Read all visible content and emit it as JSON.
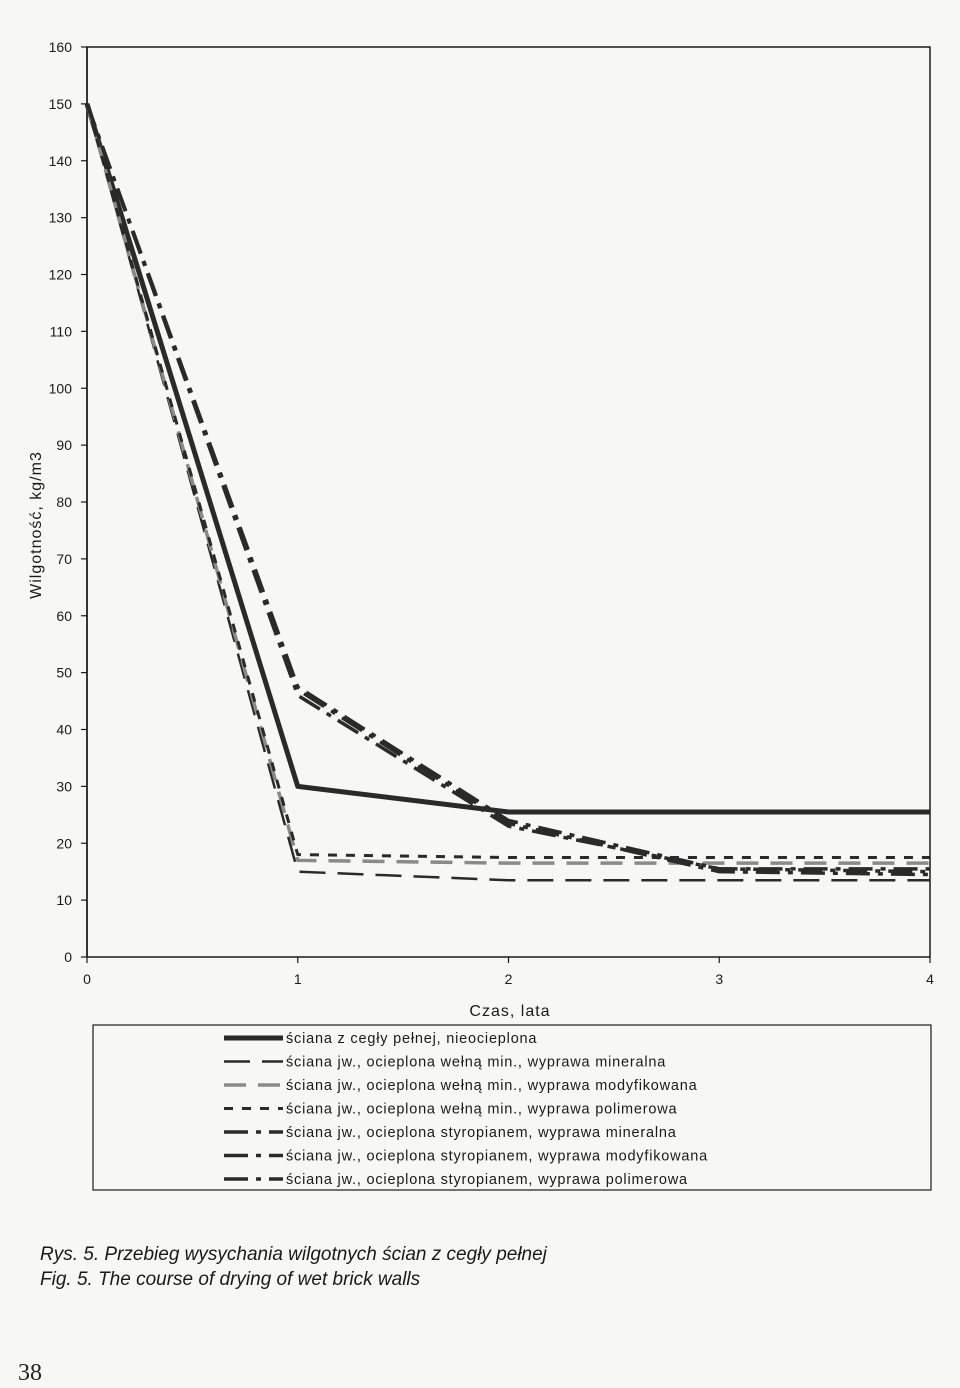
{
  "chart_data": {
    "type": "line",
    "title": "",
    "xlabel": "Czas, lata",
    "ylabel": "Wilgotność, kg/m3",
    "xlim": [
      0,
      4
    ],
    "ylim": [
      0,
      160
    ],
    "x_ticks": [
      0,
      1,
      2,
      3,
      4
    ],
    "y_ticks": [
      0,
      10,
      20,
      30,
      40,
      50,
      60,
      70,
      80,
      90,
      100,
      110,
      120,
      130,
      140,
      150,
      160
    ],
    "grid": false,
    "legend_position": "bottom",
    "x": [
      0,
      1,
      2,
      3,
      4
    ],
    "series": [
      {
        "name": "ściana z cegły pełnej, nieocieplona",
        "values": [
          150,
          30,
          25.5,
          25.5,
          25.5
        ],
        "style": "solid-thick"
      },
      {
        "name": "ściana jw., ocieplona wełną min., wyprawa mineralna",
        "values": [
          150,
          15,
          13.5,
          13.5,
          13.5
        ],
        "style": "long-dash"
      },
      {
        "name": "ściana jw., ocieplona wełną min., wyprawa modyfikowana",
        "values": [
          150,
          17,
          16.5,
          16.5,
          16.5
        ],
        "style": "gray-dash"
      },
      {
        "name": "ściana jw., ocieplona wełną min., wyprawa polimerowa",
        "values": [
          150,
          18,
          17.5,
          17.5,
          17.5
        ],
        "style": "short-dash"
      },
      {
        "name": "ściana jw., ocieplona styropianem, wyprawa mineralna",
        "values": [
          150,
          47,
          23.5,
          15,
          14.5
        ],
        "style": "dash-dot"
      },
      {
        "name": "ściana jw., ocieplona styropianem, wyprawa modyfikowana",
        "values": [
          150,
          46,
          23,
          15.5,
          15
        ],
        "style": "dash-dot"
      },
      {
        "name": "ściana jw., ocieplona styropianem, wyprawa polimerowa",
        "values": [
          150,
          47.5,
          24,
          15.5,
          15.5
        ],
        "style": "dash-dot"
      }
    ]
  },
  "caption": {
    "pl": "Rys. 5. Przebieg wysychania wilgotnych ścian z cegły pełnej",
    "en": "Fig. 5. The course of drying of wet brick walls"
  },
  "page_number": "38"
}
